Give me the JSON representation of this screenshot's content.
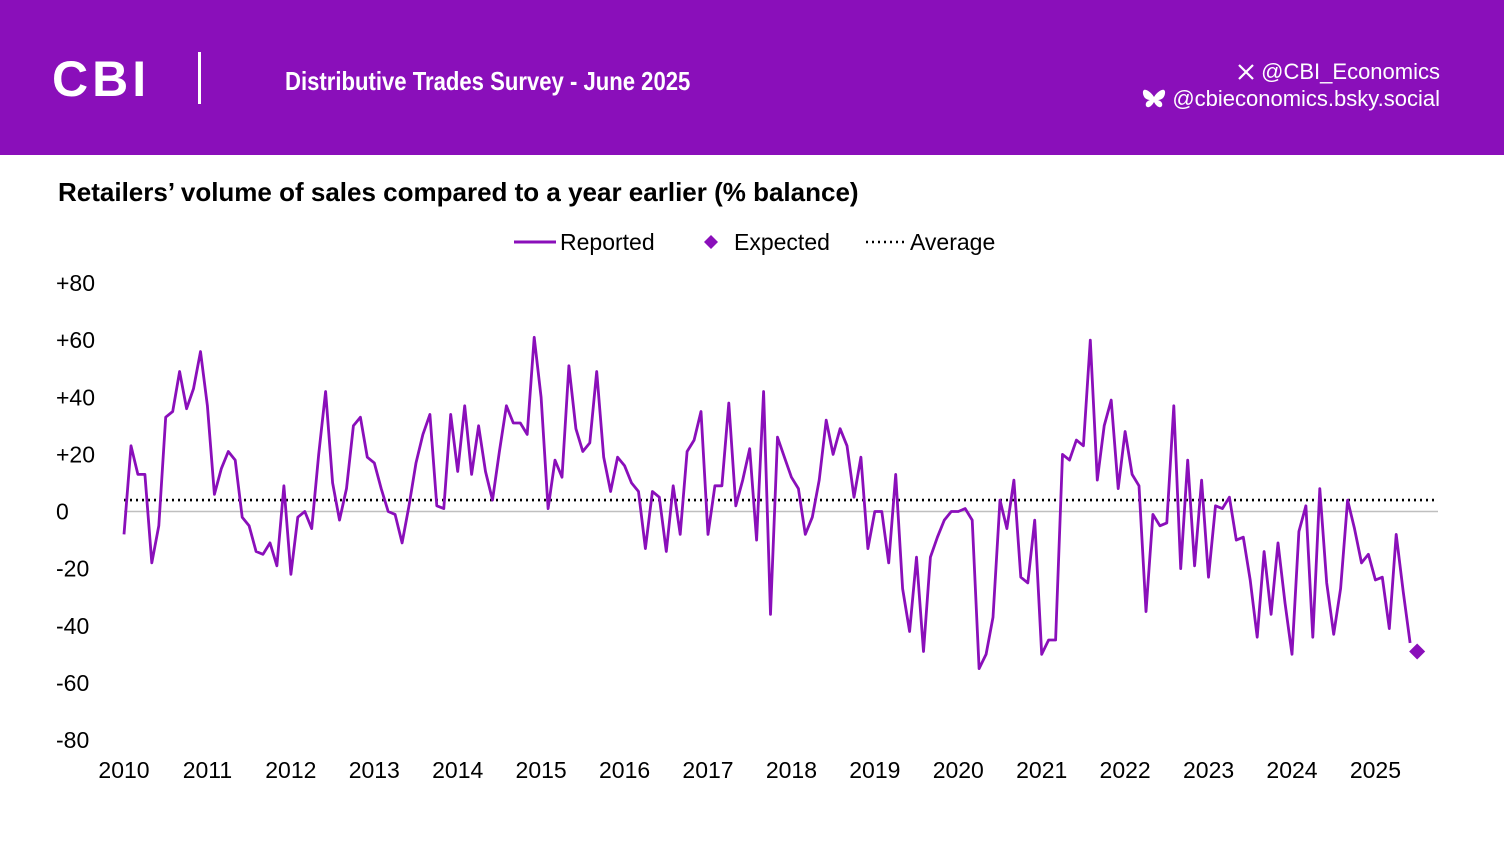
{
  "header": {
    "logo_text": "CBI",
    "survey_title": "Distributive Trades Survey - June 2025",
    "twitter_handle": "@CBI_Economics",
    "bluesky_handle": "@cbieconomics.bsky.social",
    "bg_color": "#8a0fba"
  },
  "chart_data": {
    "type": "line",
    "title": "Retailers’ volume of sales compared to a year earlier (% balance)",
    "legend": {
      "reported": "Reported",
      "expected": "Expected",
      "average": "Average"
    },
    "color": "#8a0fba",
    "ylim": [
      -80,
      80
    ],
    "ytick_values": [
      80,
      60,
      40,
      20,
      0,
      -20,
      -40,
      -60,
      -80
    ],
    "ytick_labels": [
      "+80",
      "+60",
      "+40",
      "+20",
      "0",
      "-20",
      "-40",
      "-60",
      "-80"
    ],
    "xlim": [
      2010,
      2025.75
    ],
    "xtick_values": [
      2010,
      2011,
      2012,
      2013,
      2014,
      2015,
      2016,
      2017,
      2018,
      2019,
      2020,
      2021,
      2022,
      2023,
      2024,
      2025
    ],
    "average": 4,
    "start": 2010,
    "step": 0.08333,
    "reported": [
      -8,
      23,
      13,
      13,
      -18,
      -5,
      33,
      35,
      49,
      36,
      43,
      56,
      37,
      6,
      15,
      21,
      18,
      -2,
      -5,
      -14,
      -15,
      -11,
      -19,
      9,
      -22,
      -2,
      0,
      -6,
      20,
      42,
      10,
      -3,
      8,
      30,
      33,
      19,
      17,
      8,
      0,
      -1,
      -11,
      2,
      17,
      27,
      34,
      2,
      1,
      34,
      14,
      37,
      13,
      30,
      14,
      4,
      21,
      37,
      31,
      31,
      27,
      61,
      40,
      1,
      18,
      12,
      51,
      29,
      21,
      24,
      49,
      19,
      7,
      19,
      16,
      10,
      7,
      -13,
      7,
      5,
      -14,
      9,
      -8,
      21,
      25,
      35,
      -8,
      9,
      9,
      38,
      2,
      11,
      22,
      -10,
      42,
      -36,
      26,
      19,
      12,
      8,
      -8,
      -2,
      11,
      32,
      20,
      29,
      23,
      5,
      19,
      -13,
      0,
      0,
      -18,
      13,
      -27,
      -42,
      -16,
      -49,
      -16,
      -9,
      -3,
      0,
      0,
      1,
      -3,
      -55,
      -50,
      -37,
      4,
      -6,
      11,
      -23,
      -25,
      -3,
      -50,
      -45,
      -45,
      20,
      18,
      25,
      23,
      60,
      11,
      30,
      39,
      8,
      28,
      13,
      9,
      -35,
      -1,
      -5,
      -4,
      37,
      -20,
      18,
      -19,
      11,
      -23,
      2,
      1,
      5,
      -10,
      -9,
      -24,
      -44,
      -14,
      -36,
      -11,
      -32,
      -50,
      -7,
      2,
      -44,
      8,
      -25,
      -43,
      -27,
      4,
      -6,
      -18,
      -15,
      -24,
      -23,
      -41,
      -8,
      -28,
      -46
    ],
    "expected": [
      {
        "x": 2025.5,
        "y": -49
      }
    ]
  }
}
